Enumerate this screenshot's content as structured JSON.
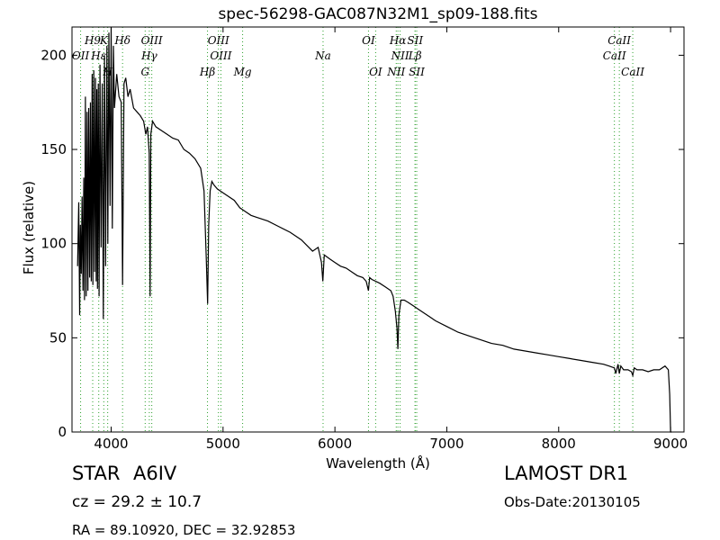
{
  "chart_data": {
    "type": "line",
    "title": "spec-56298-GAC087N32M1_sp09-188.fits",
    "xlabel": "Wavelength (Å)",
    "ylabel": "Flux (relative)",
    "xlim": [
      3650,
      9120
    ],
    "ylim": [
      0,
      215
    ],
    "xticks": [
      4000,
      5000,
      6000,
      7000,
      8000,
      9000
    ],
    "yticks": [
      0,
      50,
      100,
      150,
      200
    ],
    "grid": false,
    "line_color": "#000000",
    "marker_color": "#2ca02c",
    "series": [
      {
        "x": [
          3700,
          3710,
          3718,
          3725,
          3733,
          3740,
          3748,
          3755,
          3762,
          3770,
          3777,
          3785,
          3792,
          3800,
          3808,
          3815,
          3822,
          3830,
          3837,
          3845,
          3852,
          3860,
          3866,
          3872,
          3878,
          3885,
          3892,
          3900,
          3910,
          3920,
          3930,
          3940,
          3950,
          3962,
          3970,
          3980,
          3990,
          4000,
          4010,
          4020,
          4030,
          4050,
          4070,
          4090,
          4102,
          4115,
          4130,
          4150,
          4170,
          4200,
          4230,
          4260,
          4290,
          4310,
          4325,
          4340,
          4348,
          4355,
          4370,
          4400,
          4450,
          4500,
          4550,
          4600,
          4650,
          4700,
          4750,
          4800,
          4830,
          4850,
          4862,
          4872,
          4885,
          4900,
          4920,
          4950,
          5000,
          5050,
          5100,
          5150,
          5200,
          5250,
          5300,
          5400,
          5500,
          5600,
          5700,
          5800,
          5850,
          5880,
          5892,
          5905,
          5950,
          6000,
          6050,
          6100,
          6150,
          6200,
          6250,
          6280,
          6300,
          6310,
          6330,
          6400,
          6450,
          6500,
          6520,
          6540,
          6555,
          6563,
          6572,
          6590,
          6620,
          6650,
          6700,
          6750,
          6800,
          6850,
          6900,
          7000,
          7100,
          7200,
          7300,
          7400,
          7500,
          7600,
          7700,
          7800,
          7900,
          8000,
          8100,
          8200,
          8300,
          8400,
          8450,
          8498,
          8510,
          8530,
          8542,
          8555,
          8580,
          8620,
          8650,
          8662,
          8675,
          8700,
          8750,
          8800,
          8850,
          8900,
          8950,
          8980,
          8992,
          9000,
          9010
        ],
        "y": [
          88,
          122,
          62,
          110,
          84,
          125,
          75,
          135,
          70,
          178,
          72,
          170,
          75,
          172,
          82,
          175,
          80,
          190,
          78,
          192,
          85,
          188,
          80,
          182,
          76,
          185,
          72,
          195,
          98,
          185,
          60,
          200,
          88,
          205,
          100,
          212,
          120,
          215,
          108,
          205,
          172,
          190,
          178,
          175,
          78,
          185,
          188,
          178,
          182,
          172,
          170,
          168,
          165,
          158,
          162,
          148,
          72,
          158,
          165,
          162,
          160,
          158,
          156,
          155,
          150,
          148,
          145,
          140,
          128,
          92,
          68,
          110,
          128,
          133,
          131,
          129,
          127,
          125,
          123,
          119,
          117,
          115,
          114,
          112,
          109,
          106,
          102,
          96,
          98,
          90,
          80,
          94,
          92,
          90,
          88,
          87,
          85,
          83,
          82,
          80,
          75,
          82,
          81,
          79,
          77,
          75,
          72,
          64,
          55,
          44,
          62,
          70,
          70,
          69,
          67,
          65,
          63,
          61,
          59,
          56,
          53,
          51,
          49,
          47,
          46,
          44,
          43,
          42,
          41,
          40,
          39,
          38,
          37,
          36,
          35,
          34,
          31,
          36,
          31,
          35,
          33,
          33,
          32,
          30,
          34,
          33,
          33,
          32,
          33,
          33,
          35,
          33,
          20,
          0,
          0
        ]
      }
    ],
    "line_markers": [
      {
        "label": "OII",
        "x": 3727,
        "row": 2
      },
      {
        "label": "H9",
        "x": 3835,
        "row": 1
      },
      {
        "label": "Hε",
        "x": 3889,
        "row": 2
      },
      {
        "label": "K",
        "x": 3934,
        "row": 1
      },
      {
        "label": "H",
        "x": 3969,
        "row": 3
      },
      {
        "label": "Hδ",
        "x": 4102,
        "row": 1
      },
      {
        "label": "OIII",
        "x": 4363,
        "row": 1
      },
      {
        "label": "Hγ",
        "x": 4341,
        "row": 2
      },
      {
        "label": "G",
        "x": 4304,
        "row": 3
      },
      {
        "label": "OIII",
        "x": 4959,
        "row": 1
      },
      {
        "label": "OIII",
        "x": 4981,
        "row": 2
      },
      {
        "label": "Hβ",
        "x": 4861,
        "row": 3
      },
      {
        "label": "Mg",
        "x": 5175,
        "row": 3
      },
      {
        "label": "Na",
        "x": 5894,
        "row": 2
      },
      {
        "label": "OI",
        "x": 6300,
        "row": 1
      },
      {
        "label": "OI",
        "x": 6364,
        "row": 3
      },
      {
        "label": "Hα",
        "x": 6563,
        "row": 1
      },
      {
        "label": "SII",
        "x": 6717,
        "row": 1
      },
      {
        "label": "NII",
        "x": 6583,
        "row": 2
      },
      {
        "label": "Lβ",
        "x": 6716,
        "row": 2
      },
      {
        "label": "NII",
        "x": 6548,
        "row": 3
      },
      {
        "label": "SII",
        "x": 6731,
        "row": 3
      },
      {
        "label": "CaII",
        "x": 8542,
        "row": 1
      },
      {
        "label": "CaII",
        "x": 8498,
        "row": 2
      },
      {
        "label": "CaII",
        "x": 8662,
        "row": 3
      }
    ]
  },
  "info": {
    "object_class": "STAR",
    "subclass": "A6IV",
    "survey": "LAMOST DR1",
    "redshift": "cz = 29.2 ± 10.7",
    "obs_date": "Obs-Date:20130105",
    "coords": "RA = 89.10920, DEC = 32.92853"
  }
}
